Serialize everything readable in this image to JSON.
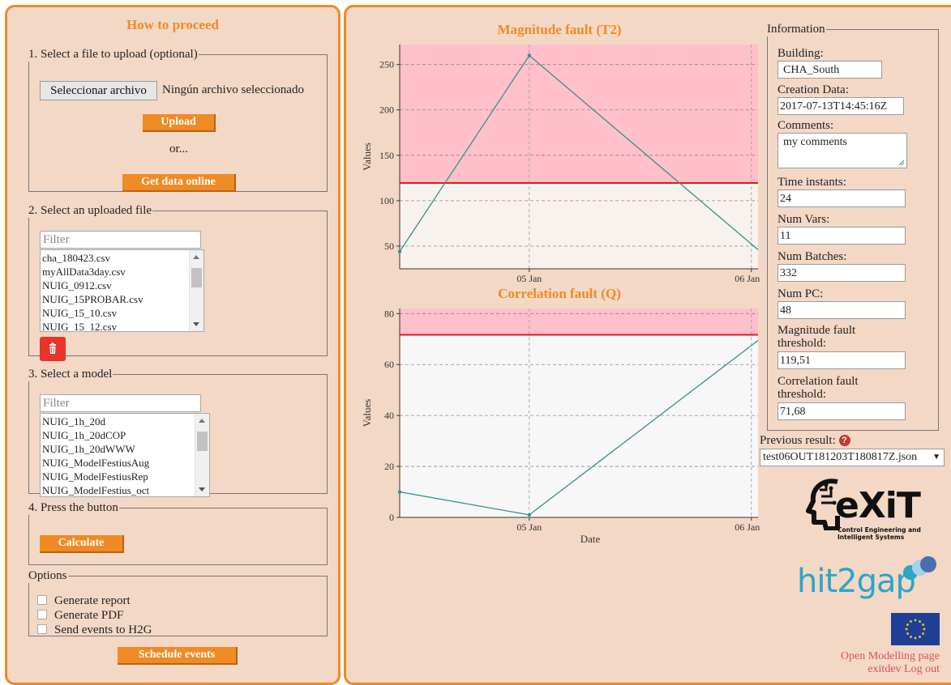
{
  "left": {
    "title": "How to proceed",
    "step1": {
      "legend": "1. Select a file to upload (optional)",
      "choose_button": "Seleccionar archivo",
      "no_file_text": "Ningún archivo seleccionado",
      "upload_button": "Upload",
      "or_text": "or...",
      "online_button": "Get data online"
    },
    "step2": {
      "legend": "2. Select an uploaded file",
      "filter_placeholder": "Filter",
      "files": [
        "cha_180423.csv",
        "myAllData3day.csv",
        "NUIG_0912.csv",
        "NUIG_15PROBAR.csv",
        "NUIG_15_10.csv",
        "NUIG_15_12.csv"
      ],
      "delete_icon": "trash-icon"
    },
    "step3": {
      "legend": "3. Select a model",
      "filter_placeholder": "Filter",
      "models": [
        "NUIG_1h_20d",
        "NUIG_1h_20dCOP",
        "NUIG_1h_20dWWW",
        "NUIG_ModelFestiusAug",
        "NUIG_ModelFestiusRep",
        "NUIG_ModelFestius_oct"
      ]
    },
    "step4": {
      "legend": "4. Press the button",
      "calculate_button": "Calculate"
    },
    "options": {
      "legend": "Options",
      "items": [
        "Generate report",
        "Generate PDF",
        "Send events to H2G"
      ]
    },
    "schedule_button": "Schedule events"
  },
  "charts": {
    "magnitude": {
      "title": "Magnitude fault (T2)",
      "ylabel": "Values"
    },
    "correlation": {
      "title": "Correlation fault (Q)",
      "ylabel": "Values",
      "xlabel": "Date"
    }
  },
  "chart_data": [
    {
      "type": "line",
      "title": "Magnitude fault (T2)",
      "ylabel": "Values",
      "xlabel": "",
      "x_ticks": [
        "05 Jan",
        "06 Jan"
      ],
      "y_ticks": [
        50,
        100,
        150,
        200,
        250
      ],
      "ylim": [
        25,
        272
      ],
      "x": [
        "2018-01-04T10:00",
        "2018-01-05T00:00",
        "2018-01-06T02:00"
      ],
      "series": [
        {
          "values": [
            44,
            260,
            35
          ],
          "color": "#3a8f8f"
        }
      ],
      "threshold": 119.51,
      "threshold_color": "#e41a1c",
      "fault_region_color": "#ffc0cb",
      "normal_region_color": "#f7f2ee"
    },
    {
      "type": "line",
      "title": "Correlation fault (Q)",
      "ylabel": "Values",
      "xlabel": "Date",
      "x_ticks": [
        "05 Jan",
        "06 Jan"
      ],
      "y_ticks": [
        0,
        20,
        40,
        60,
        80
      ],
      "ylim": [
        0,
        82
      ],
      "x": [
        "2018-01-04T10:00",
        "2018-01-05T00:00",
        "2018-01-06T02:00"
      ],
      "series": [
        {
          "values": [
            10,
            1,
            73
          ],
          "color": "#3a8f8f"
        }
      ],
      "threshold": 71.68,
      "threshold_color": "#e41a1c",
      "fault_region_color": "#ffc0cb",
      "normal_region_color": "#f7f7f7"
    }
  ],
  "info": {
    "legend": "Information",
    "building_label": "Building:",
    "building_value": "CHA_South",
    "creation_label": "Creation Data:",
    "creation_value": "2017-07-13T14:45:16Z",
    "comments_label": "Comments:",
    "comments_value": "my comments",
    "time_label": "Time instants:",
    "time_value": "24",
    "vars_label": "Num Vars:",
    "vars_value": "11",
    "batches_label": "Num Batches:",
    "batches_value": "332",
    "pc_label": "Num PC:",
    "pc_value": "48",
    "mag_label_1": "Magnitude fault",
    "mag_label_2": "threshold:",
    "mag_value": "119,51",
    "corr_label_1": "Correlation fault",
    "corr_label_2": "threshold:",
    "corr_value": "71,68"
  },
  "previous": {
    "label": "Previous result:",
    "help_icon": "question-icon",
    "selected": "test06OUT181203T180817Z.json"
  },
  "logos": {
    "exit_text": "eXiT",
    "exit_sub_1": "Control Engineering and",
    "exit_sub_2": "Intelligent Systems",
    "hit2gap_text": "hit2gap"
  },
  "links": {
    "modelling": "Open Modelling page",
    "user": "exitdev",
    "logout": "Log out"
  },
  "colors": {
    "accent": "#f08a24",
    "panel_bg": "#f3d8c6",
    "delete_red": "#e8342a",
    "line_teal": "#3a8f8f",
    "threshold_red": "#e41a1c",
    "link_red": "#d9534f"
  }
}
